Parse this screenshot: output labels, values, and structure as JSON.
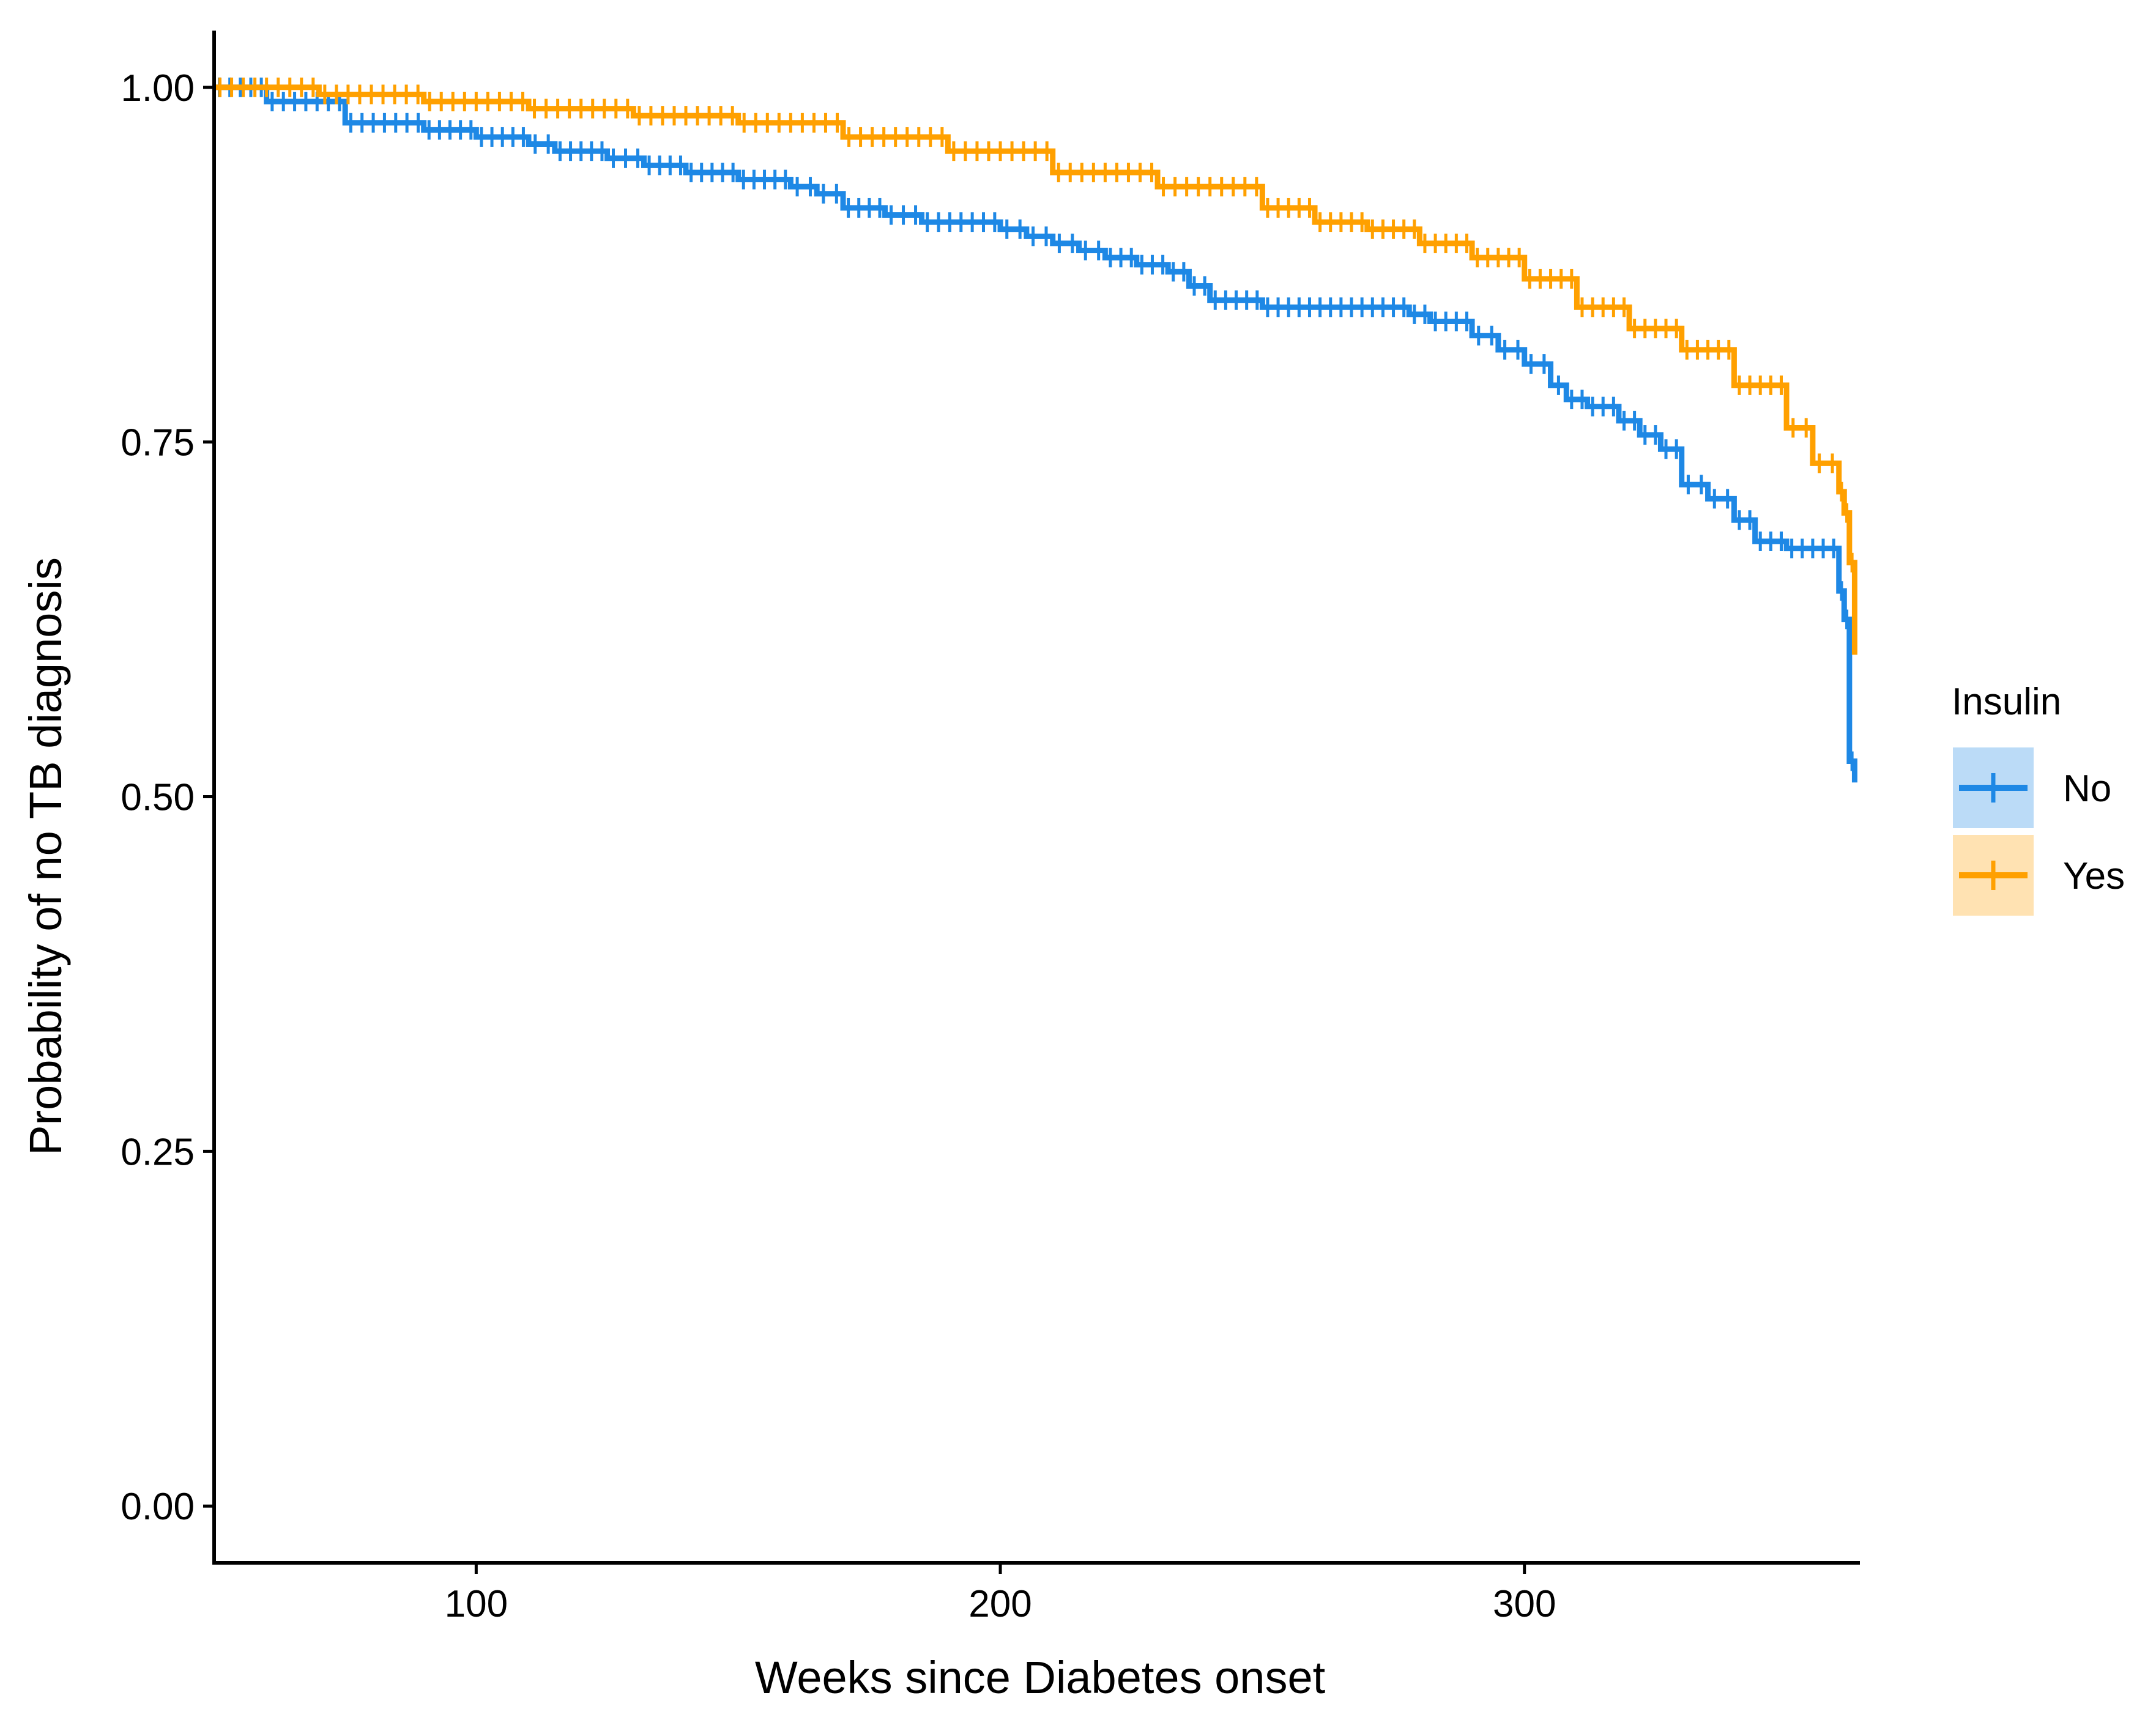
{
  "chart_data": {
    "type": "line",
    "subtype": "kaplan-meier",
    "title": "",
    "xlabel": "Weeks since Diabetes onset",
    "ylabel": "Probability of no TB diagnosis",
    "xlim": [
      50,
      364
    ],
    "ylim": [
      -0.04,
      1.04
    ],
    "xticks": [
      100,
      200,
      300
    ],
    "xtick_labels": [
      "100",
      "200",
      "300"
    ],
    "yticks": [
      0,
      0.25,
      0.5,
      0.75,
      1.0
    ],
    "ytick_labels": [
      "0.00",
      "0.25",
      "0.50",
      "0.75",
      "1.00"
    ],
    "grid": false,
    "legend": {
      "title": "Insulin",
      "position": "right"
    },
    "series": [
      {
        "name": "No",
        "color": "#1E88E5",
        "censor_marks": true,
        "x": [
          50,
          60,
          75,
          90,
          100,
          110,
          115,
          125,
          132,
          140,
          150,
          160,
          165,
          170,
          178,
          185,
          200,
          205,
          210,
          215,
          220,
          226,
          232,
          236,
          240,
          250,
          260,
          270,
          278,
          282,
          290,
          295,
          300,
          305,
          308,
          312,
          318,
          322,
          326,
          330,
          335,
          340,
          344,
          350,
          358,
          360,
          361,
          362,
          363
        ],
        "y": [
          1.0,
          0.99,
          0.975,
          0.97,
          0.965,
          0.96,
          0.955,
          0.95,
          0.945,
          0.94,
          0.935,
          0.93,
          0.925,
          0.915,
          0.91,
          0.905,
          0.9,
          0.895,
          0.89,
          0.885,
          0.88,
          0.875,
          0.87,
          0.86,
          0.85,
          0.845,
          0.845,
          0.845,
          0.84,
          0.835,
          0.825,
          0.815,
          0.805,
          0.79,
          0.78,
          0.775,
          0.765,
          0.755,
          0.745,
          0.72,
          0.71,
          0.695,
          0.68,
          0.675,
          0.675,
          0.645,
          0.625,
          0.525,
          0.51
        ]
      },
      {
        "name": "Yes",
        "color": "#FFA000",
        "censor_marks": true,
        "x": [
          50,
          70,
          90,
          110,
          130,
          150,
          170,
          190,
          210,
          230,
          250,
          260,
          270,
          280,
          290,
          300,
          310,
          320,
          330,
          340,
          350,
          355,
          360,
          361,
          362,
          363
        ],
        "y": [
          1.0,
          0.995,
          0.99,
          0.985,
          0.98,
          0.975,
          0.965,
          0.955,
          0.94,
          0.93,
          0.915,
          0.905,
          0.9,
          0.89,
          0.88,
          0.865,
          0.845,
          0.83,
          0.815,
          0.79,
          0.76,
          0.735,
          0.715,
          0.7,
          0.665,
          0.6
        ]
      }
    ]
  }
}
